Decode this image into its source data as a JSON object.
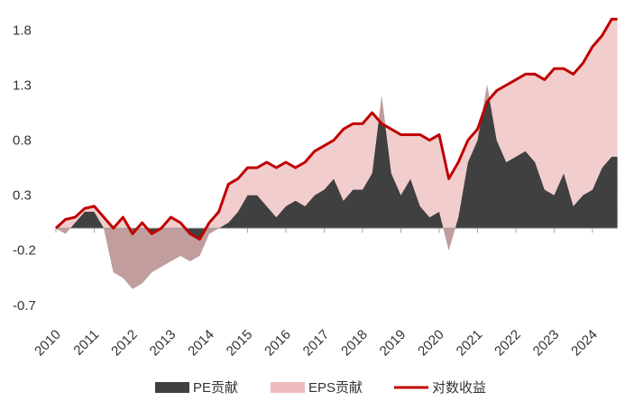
{
  "chart_data": {
    "type": "stacked_area_line",
    "x": [
      2010,
      2010.25,
      2010.5,
      2010.75,
      2011,
      2011.25,
      2011.5,
      2011.75,
      2012,
      2012.25,
      2012.5,
      2012.75,
      2013,
      2013.25,
      2013.5,
      2013.75,
      2014,
      2014.25,
      2014.5,
      2014.75,
      2015,
      2015.25,
      2015.5,
      2015.75,
      2016,
      2016.25,
      2016.5,
      2016.75,
      2017,
      2017.25,
      2017.5,
      2017.75,
      2018,
      2018.25,
      2018.5,
      2018.75,
      2019,
      2019.25,
      2019.5,
      2019.75,
      2020,
      2020.25,
      2020.5,
      2020.75,
      2021,
      2021.25,
      2021.5,
      2021.75,
      2022,
      2022.25,
      2022.5,
      2022.75,
      2023,
      2023.25,
      2023.5,
      2023.75,
      2024,
      2024.25,
      2024.5,
      2024.65
    ],
    "series": [
      {
        "name": "PE贡献",
        "kind": "area",
        "color": "#404040",
        "values": [
          0,
          -0.05,
          0.05,
          0.15,
          0.15,
          0,
          -0.4,
          -0.45,
          -0.55,
          -0.5,
          -0.4,
          -0.35,
          -0.3,
          -0.25,
          -0.3,
          -0.25,
          -0.05,
          0,
          0.05,
          0.15,
          0.3,
          0.3,
          0.2,
          0.1,
          0.2,
          0.25,
          0.2,
          0.3,
          0.35,
          0.45,
          0.25,
          0.35,
          0.35,
          0.5,
          1.2,
          0.5,
          0.3,
          0.45,
          0.2,
          0.1,
          0.15,
          -0.2,
          0.1,
          0.6,
          0.8,
          1.3,
          0.8,
          0.6,
          0.65,
          0.7,
          0.6,
          0.35,
          0.3,
          0.5,
          0.2,
          0.3,
          0.35,
          0.55,
          0.65,
          0.65
        ]
      },
      {
        "name": "EPS贡献",
        "kind": "area",
        "color": "#eebcbc",
        "values": [
          0,
          0.13,
          0.05,
          0.03,
          0.05,
          0.1,
          0.4,
          0.55,
          0.5,
          0.55,
          0.35,
          0.35,
          0.4,
          0.3,
          0.25,
          0.15,
          0.1,
          0.15,
          0.35,
          0.3,
          0.25,
          0.25,
          0.4,
          0.45,
          0.4,
          0.3,
          0.4,
          0.4,
          0.4,
          0.35,
          0.65,
          0.6,
          0.6,
          0.55,
          -0.25,
          0.4,
          0.55,
          0.4,
          0.65,
          0.7,
          0.7,
          0.65,
          0.5,
          0.2,
          0.1,
          -0.15,
          0.45,
          0.7,
          0.7,
          0.7,
          0.8,
          1.0,
          1.15,
          0.95,
          1.2,
          1.2,
          1.3,
          1.2,
          1.25,
          1.25
        ]
      },
      {
        "name": "对数收益",
        "kind": "line",
        "color": "#c00000",
        "values": [
          0,
          0.08,
          0.1,
          0.18,
          0.2,
          0.1,
          0,
          0.1,
          -0.05,
          0.05,
          -0.05,
          0,
          0.1,
          0.05,
          -0.05,
          -0.1,
          0.05,
          0.15,
          0.4,
          0.45,
          0.55,
          0.55,
          0.6,
          0.55,
          0.6,
          0.55,
          0.6,
          0.7,
          0.75,
          0.8,
          0.9,
          0.95,
          0.95,
          1.05,
          0.95,
          0.9,
          0.85,
          0.85,
          0.85,
          0.8,
          0.85,
          0.45,
          0.6,
          0.8,
          0.9,
          1.15,
          1.25,
          1.3,
          1.35,
          1.4,
          1.4,
          1.35,
          1.45,
          1.45,
          1.4,
          1.5,
          1.65,
          1.75,
          1.9,
          1.9
        ]
      }
    ],
    "xlim": [
      2010,
      2024.65
    ],
    "xticks": [
      2010,
      2011,
      2012,
      2013,
      2014,
      2015,
      2016,
      2017,
      2018,
      2019,
      2020,
      2021,
      2022,
      2023,
      2024
    ],
    "ylim": [
      -0.8,
      2.0
    ],
    "yticks": [
      -0.7,
      -0.2,
      0.3,
      0.8,
      1.3,
      1.8
    ],
    "grid": false,
    "legend": "bottom"
  }
}
